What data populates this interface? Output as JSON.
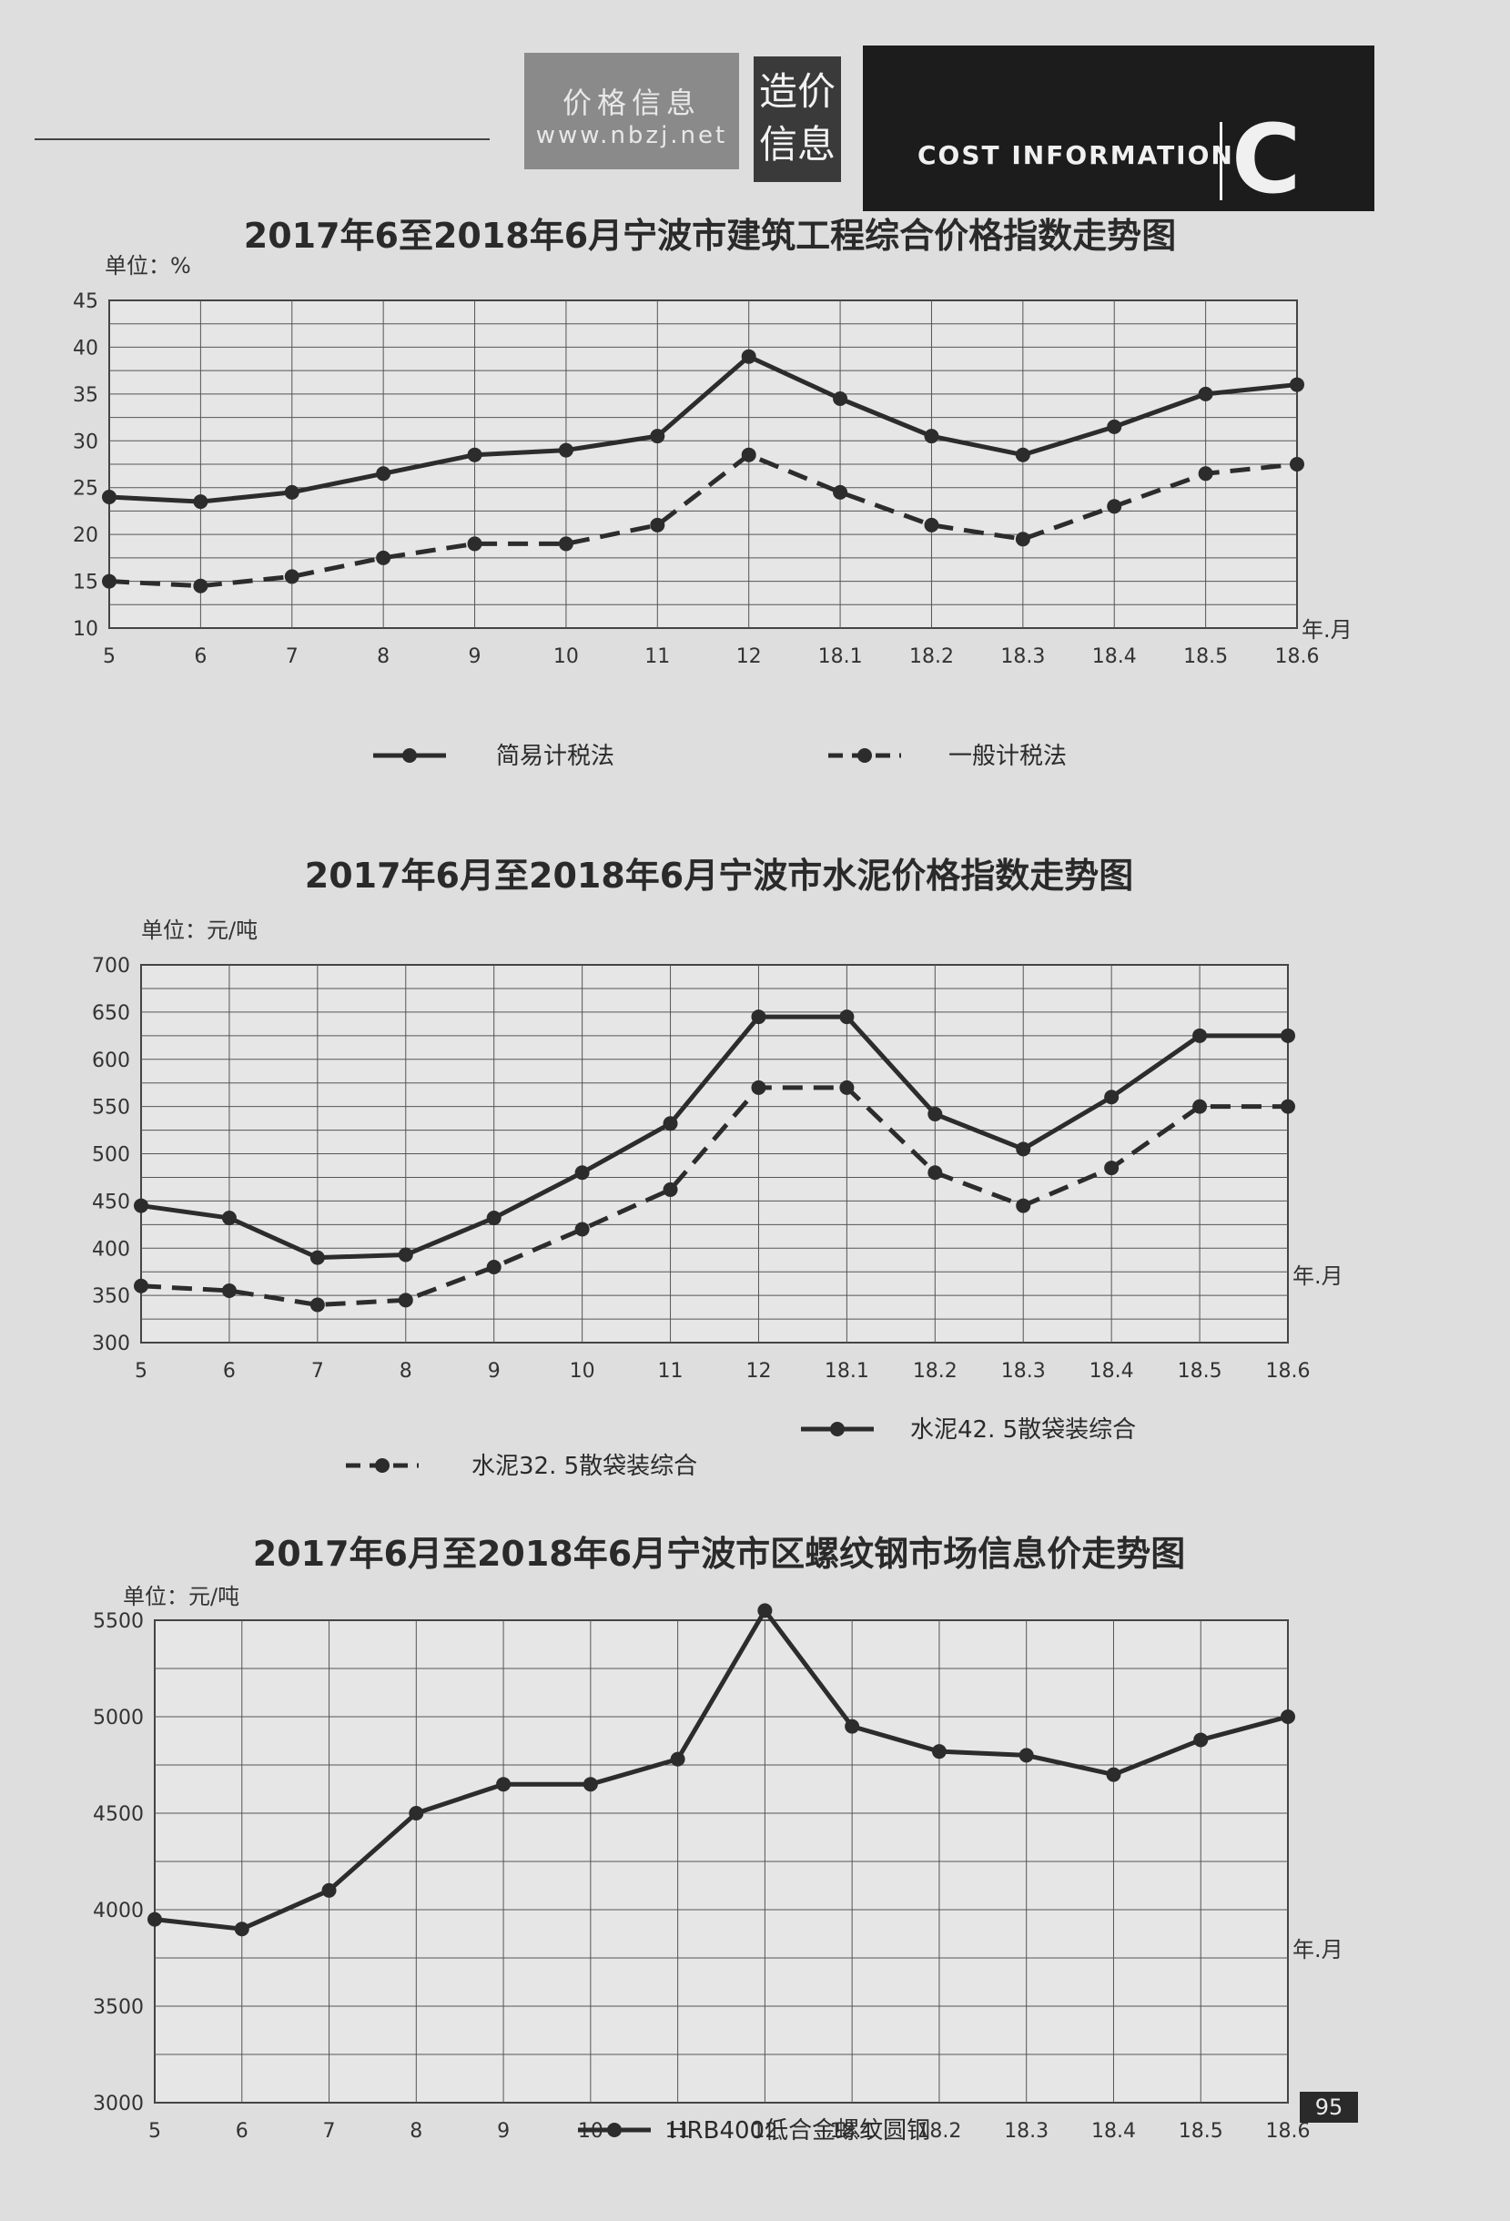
{
  "header": {
    "logo_line1": "价格信息",
    "logo_line2": "www.nbzj.net",
    "section_label_1": "造价",
    "section_label_2": "信息",
    "banner_text": "COST INFORMATION",
    "banner_letter": "C"
  },
  "page_number": "95",
  "chart_data": [
    {
      "type": "line",
      "title": "2017年6至2018年6月宁波市建筑工程综合价格指数走势图",
      "unit_label": "单位：%",
      "x_unit_label": "年.月",
      "categories": [
        "5",
        "6",
        "7",
        "8",
        "9",
        "10",
        "11",
        "12",
        "18.1",
        "18.2",
        "18.3",
        "18.4",
        "18.5",
        "18.6"
      ],
      "ylim": [
        10,
        45
      ],
      "yticks": [
        10,
        15,
        20,
        25,
        30,
        35,
        40,
        45
      ],
      "grid": true,
      "legend_position": "bottom",
      "series": [
        {
          "name": "简易计税法",
          "style": "solid",
          "values": [
            24,
            23.5,
            24.5,
            26.5,
            28.5,
            29,
            30.5,
            39,
            34.5,
            30.5,
            28.5,
            31.5,
            35,
            36
          ]
        },
        {
          "name": "一般计税法",
          "style": "dashed",
          "values": [
            15,
            14.5,
            15.5,
            17.5,
            19,
            19,
            21,
            28.5,
            24.5,
            21,
            19.5,
            23,
            26.5,
            27.5
          ]
        }
      ]
    },
    {
      "type": "line",
      "title": "2017年6月至2018年6月宁波市水泥价格指数走势图",
      "unit_label": "单位：元/吨",
      "x_unit_label": "年.月",
      "categories": [
        "5",
        "6",
        "7",
        "8",
        "9",
        "10",
        "11",
        "12",
        "18.1",
        "18.2",
        "18.3",
        "18.4",
        "18.5",
        "18.6"
      ],
      "ylim": [
        300,
        700
      ],
      "yticks": [
        300,
        350,
        400,
        450,
        500,
        550,
        600,
        650,
        700
      ],
      "grid": true,
      "legend_position": "bottom",
      "series": [
        {
          "name": "水泥32. 5散袋装综合",
          "style": "dashed",
          "values": [
            360,
            355,
            340,
            345,
            380,
            420,
            462,
            570,
            570,
            480,
            445,
            485,
            550,
            550
          ]
        },
        {
          "name": "水泥42. 5散袋装综合",
          "style": "solid",
          "values": [
            445,
            432,
            390,
            393,
            432,
            480,
            532,
            645,
            645,
            542,
            505,
            560,
            625,
            625
          ]
        }
      ]
    },
    {
      "type": "line",
      "title": "2017年6月至2018年6月宁波市区螺纹钢市场信息价走势图",
      "unit_label": "单位：元/吨",
      "x_unit_label": "年.月",
      "categories": [
        "5",
        "6",
        "7",
        "8",
        "9",
        "10",
        "11",
        "12",
        "18.1",
        "18.2",
        "18.3",
        "18.4",
        "18.5",
        "18.6"
      ],
      "ylim": [
        3000,
        5500
      ],
      "yticks": [
        3000,
        3500,
        4000,
        4500,
        5000,
        5500
      ],
      "grid": true,
      "legend_position": "bottom",
      "series": [
        {
          "name": "HRB400低合金螺纹圆钢",
          "style": "solid",
          "values": [
            3950,
            3900,
            4100,
            4500,
            4650,
            4650,
            4780,
            5550,
            4950,
            4820,
            4800,
            4700,
            4880,
            5000
          ]
        }
      ]
    }
  ]
}
